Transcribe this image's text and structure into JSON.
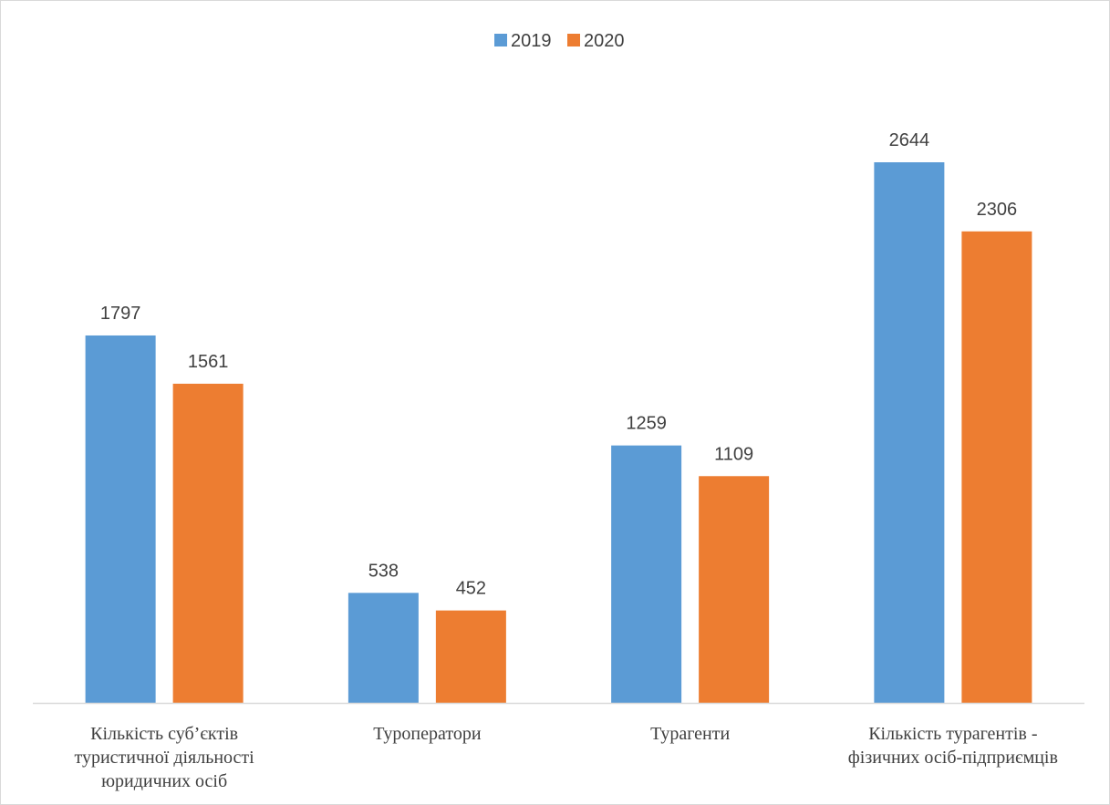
{
  "chart_data": {
    "type": "bar",
    "title": "",
    "xlabel": "",
    "ylabel": "",
    "ylim": [
      0,
      3000
    ],
    "grid": false,
    "legend_position": "top",
    "categories": [
      [
        "Кількість суб’єктів",
        "туристичної діяльності",
        "юридичних осіб"
      ],
      [
        "Туроператори"
      ],
      [
        "Турагенти"
      ],
      [
        "Кількість турагентів -",
        "фізичних осіб-підприємців"
      ]
    ],
    "series": [
      {
        "name": "2019",
        "color": "#5b9bd5",
        "values": [
          1797,
          538,
          1259,
          2644
        ]
      },
      {
        "name": "2020",
        "color": "#ed7d31",
        "values": [
          1561,
          452,
          1109,
          2306
        ]
      }
    ]
  }
}
